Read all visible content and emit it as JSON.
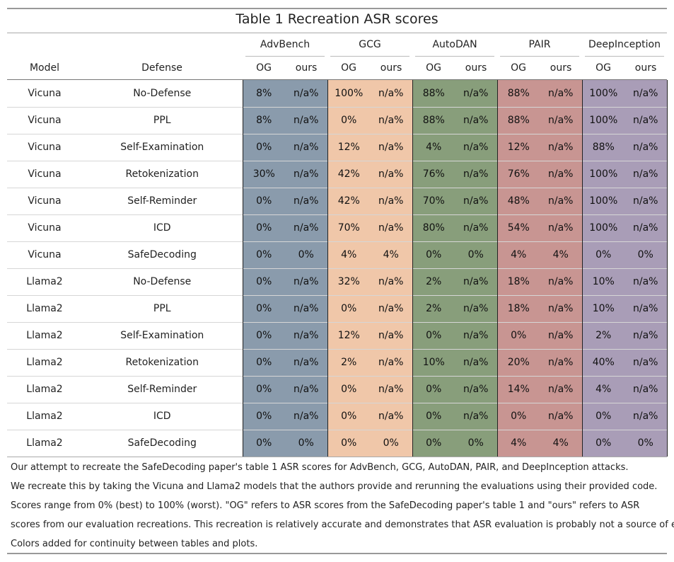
{
  "title": "Table 1 Recreation ASR scores",
  "columns": {
    "model": "Model",
    "defense": "Defense"
  },
  "attacks": [
    {
      "name": "AdvBench",
      "og": "OG",
      "ours": "ours",
      "color": "#8a9bac"
    },
    {
      "name": "GCG",
      "og": "OG",
      "ours": "ours",
      "color": "#f0c7a9"
    },
    {
      "name": "AutoDAN",
      "og": "OG",
      "ours": "ours",
      "color": "#889e7b"
    },
    {
      "name": "PAIR",
      "og": "OG",
      "ours": "ours",
      "color": "#c89592"
    },
    {
      "name": "DeepInception",
      "og": "OG",
      "ours": "ours",
      "color": "#a99db7"
    }
  ],
  "rows": [
    {
      "model": "Vicuna",
      "defense": "No-Defense",
      "values": [
        "8%",
        "n/a%",
        "100%",
        "n/a%",
        "88%",
        "n/a%",
        "88%",
        "n/a%",
        "100%",
        "n/a%"
      ]
    },
    {
      "model": "Vicuna",
      "defense": "PPL",
      "values": [
        "8%",
        "n/a%",
        "0%",
        "n/a%",
        "88%",
        "n/a%",
        "88%",
        "n/a%",
        "100%",
        "n/a%"
      ]
    },
    {
      "model": "Vicuna",
      "defense": "Self-Examination",
      "values": [
        "0%",
        "n/a%",
        "12%",
        "n/a%",
        "4%",
        "n/a%",
        "12%",
        "n/a%",
        "88%",
        "n/a%"
      ]
    },
    {
      "model": "Vicuna",
      "defense": "Retokenization",
      "values": [
        "30%",
        "n/a%",
        "42%",
        "n/a%",
        "76%",
        "n/a%",
        "76%",
        "n/a%",
        "100%",
        "n/a%"
      ]
    },
    {
      "model": "Vicuna",
      "defense": "Self-Reminder",
      "values": [
        "0%",
        "n/a%",
        "42%",
        "n/a%",
        "70%",
        "n/a%",
        "48%",
        "n/a%",
        "100%",
        "n/a%"
      ]
    },
    {
      "model": "Vicuna",
      "defense": "ICD",
      "values": [
        "0%",
        "n/a%",
        "70%",
        "n/a%",
        "80%",
        "n/a%",
        "54%",
        "n/a%",
        "100%",
        "n/a%"
      ]
    },
    {
      "model": "Vicuna",
      "defense": "SafeDecoding",
      "values": [
        "0%",
        "0%",
        "4%",
        "4%",
        "0%",
        "0%",
        "4%",
        "4%",
        "0%",
        "0%"
      ]
    },
    {
      "model": "Llama2",
      "defense": "No-Defense",
      "values": [
        "0%",
        "n/a%",
        "32%",
        "n/a%",
        "2%",
        "n/a%",
        "18%",
        "n/a%",
        "10%",
        "n/a%"
      ]
    },
    {
      "model": "Llama2",
      "defense": "PPL",
      "values": [
        "0%",
        "n/a%",
        "0%",
        "n/a%",
        "2%",
        "n/a%",
        "18%",
        "n/a%",
        "10%",
        "n/a%"
      ]
    },
    {
      "model": "Llama2",
      "defense": "Self-Examination",
      "values": [
        "0%",
        "n/a%",
        "12%",
        "n/a%",
        "0%",
        "n/a%",
        "0%",
        "n/a%",
        "2%",
        "n/a%"
      ]
    },
    {
      "model": "Llama2",
      "defense": "Retokenization",
      "values": [
        "0%",
        "n/a%",
        "2%",
        "n/a%",
        "10%",
        "n/a%",
        "20%",
        "n/a%",
        "40%",
        "n/a%"
      ]
    },
    {
      "model": "Llama2",
      "defense": "Self-Reminder",
      "values": [
        "0%",
        "n/a%",
        "0%",
        "n/a%",
        "0%",
        "n/a%",
        "14%",
        "n/a%",
        "4%",
        "n/a%"
      ]
    },
    {
      "model": "Llama2",
      "defense": "ICD",
      "values": [
        "0%",
        "n/a%",
        "0%",
        "n/a%",
        "0%",
        "n/a%",
        "0%",
        "n/a%",
        "0%",
        "n/a%"
      ]
    },
    {
      "model": "Llama2",
      "defense": "SafeDecoding",
      "values": [
        "0%",
        "0%",
        "0%",
        "0%",
        "0%",
        "0%",
        "4%",
        "4%",
        "0%",
        "0%"
      ]
    }
  ],
  "notes": [
    "Our attempt to recreate the SafeDecoding paper's table 1 ASR scores for AdvBench, GCG, AutoDAN, PAIR, and DeepInception attacks.",
    "We recreate this by taking the Vicuna and Llama2 models that the authors provide and rerunning the evaluations using their provided code.",
    "Scores range from 0% (best) to 100% (worst). \"OG\" refers to ASR scores from the SafeDecoding paper's table 1 and \"ours\" refers to ASR",
    "scores from our evaluation recreations. This recreation is relatively accurate and demonstrates that ASR evaluation is probably not a source of error",
    "Colors added for continuity between tables and plots."
  ]
}
